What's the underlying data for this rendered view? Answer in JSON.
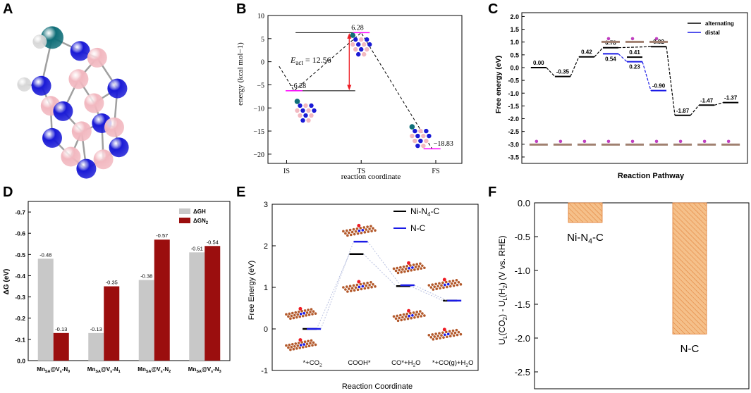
{
  "panel_letters": {
    "A": "A",
    "B": "B",
    "C": "C",
    "D": "D",
    "E": "E",
    "F": "F"
  },
  "colors": {
    "ni": "#1a1ad6",
    "b": "#f2b8c0",
    "mn": "#0f6e78",
    "h": "#d8d8d8",
    "pink": "#ff00ff",
    "red": "#ee1c24",
    "grey": "#c8c8c8",
    "darkred": "#9b0e0e",
    "orange": "#f5c08a",
    "orange_edge": "#e07a30",
    "blue": "#1a1ae6",
    "slab": "#b3592b"
  },
  "chart_data": [
    {
      "panel": "A",
      "type": "other",
      "title": "molecular structure (ball-and-stick)",
      "atoms": [
        {
          "el": "Mn",
          "x": 3.0,
          "y": 2.6
        },
        {
          "el": "H",
          "x": 2.2,
          "y": 2.9
        },
        {
          "el": "H",
          "x": 1.2,
          "y": 6.1
        },
        {
          "el": "N",
          "x": 2.3,
          "y": 6.2
        },
        {
          "el": "N",
          "x": 4.8,
          "y": 3.6
        },
        {
          "el": "B",
          "x": 5.9,
          "y": 4.1
        },
        {
          "el": "N",
          "x": 7.2,
          "y": 6.4
        },
        {
          "el": "B",
          "x": 4.7,
          "y": 5.7
        },
        {
          "el": "B",
          "x": 2.9,
          "y": 7.7
        },
        {
          "el": "N",
          "x": 3.7,
          "y": 8.1
        },
        {
          "el": "B",
          "x": 5.7,
          "y": 7.5
        },
        {
          "el": "N",
          "x": 6.2,
          "y": 9.0
        },
        {
          "el": "B",
          "x": 4.9,
          "y": 9.6
        },
        {
          "el": "N",
          "x": 3.0,
          "y": 10.1
        },
        {
          "el": "B",
          "x": 7.0,
          "y": 9.3
        },
        {
          "el": "N",
          "x": 7.3,
          "y": 10.8
        },
        {
          "el": "B",
          "x": 4.2,
          "y": 11.5
        },
        {
          "el": "B",
          "x": 6.3,
          "y": 11.7
        },
        {
          "el": "N",
          "x": 5.2,
          "y": 12.4
        }
      ],
      "bonds": [
        [
          0,
          1
        ],
        [
          0,
          4
        ],
        [
          0,
          3
        ],
        [
          2,
          3
        ],
        [
          3,
          8
        ],
        [
          4,
          5
        ],
        [
          5,
          6
        ],
        [
          5,
          7
        ],
        [
          7,
          9
        ],
        [
          8,
          9
        ],
        [
          7,
          10
        ],
        [
          10,
          6
        ],
        [
          10,
          11
        ],
        [
          9,
          12
        ],
        [
          12,
          11
        ],
        [
          8,
          13
        ],
        [
          13,
          16
        ],
        [
          11,
          14
        ],
        [
          14,
          6
        ],
        [
          14,
          15
        ],
        [
          15,
          17
        ],
        [
          16,
          18
        ],
        [
          17,
          18
        ],
        [
          12,
          18
        ],
        [
          12,
          16
        ],
        [
          11,
          17
        ]
      ]
    },
    {
      "panel": "B",
      "type": "line",
      "title": "",
      "xlabel": "reaction coordinate",
      "ylabel": "energy (kcal mol−1)",
      "categories": [
        "IS",
        "TS",
        "FS"
      ],
      "xpos": [
        0,
        1,
        2
      ],
      "levels": [
        {
          "x": 0.1,
          "y": -6.28,
          "label": "−6.28"
        },
        {
          "x": 1.0,
          "y": 6.28,
          "label": "6.28"
        },
        {
          "x": 1.95,
          "y": -18.83,
          "label": "−18.83"
        }
      ],
      "path_x": [
        -0.1,
        0.1,
        1.0,
        1.95
      ],
      "path_y": [
        -1.0,
        -6.28,
        6.28,
        -18.83
      ],
      "annotation": {
        "E": "E",
        "sub": "act",
        "eq": " = 12.56"
      },
      "yticks": [
        10,
        5,
        0,
        -5,
        -10,
        -15,
        -20
      ],
      "ytick_labels": [
        "10",
        "5",
        "0",
        "−5",
        "−10",
        "−15",
        "−20"
      ],
      "ylim": [
        -22,
        10
      ],
      "xlim": [
        -0.25,
        2.35
      ]
    },
    {
      "panel": "C",
      "type": "line",
      "title": "",
      "xlabel": "Reaction Pathway",
      "ylabel": "Free energy (eV)",
      "legend": [
        "alternating",
        "distal"
      ],
      "series": [
        {
          "name": "alternating",
          "x": [
            0,
            1,
            2,
            3,
            5,
            6,
            7,
            8
          ],
          "y": [
            0.0,
            -0.35,
            0.42,
            0.78,
            0.82,
            -1.87,
            -1.47,
            -1.37
          ]
        },
        {
          "name": "distal",
          "x": [
            3,
            4,
            5
          ],
          "y": [
            0.54,
            0.23,
            -0.9
          ]
        }
      ],
      "extra_levels": [
        {
          "x": 4,
          "y": 0.41
        }
      ],
      "value_labels": [
        {
          "x": 0,
          "y": 0.0,
          "t": "0.00"
        },
        {
          "x": 1,
          "y": -0.35,
          "t": "-0.35"
        },
        {
          "x": 2,
          "y": 0.42,
          "t": "0.42"
        },
        {
          "x": 3,
          "y": 0.78,
          "t": "0.78"
        },
        {
          "x": 3,
          "y": 0.54,
          "t": "0.54"
        },
        {
          "x": 4,
          "y": 0.41,
          "t": "0.41"
        },
        {
          "x": 4,
          "y": 0.23,
          "t": "0.23"
        },
        {
          "x": 5,
          "y": 0.82,
          "t": "0.82"
        },
        {
          "x": 5,
          "y": -0.9,
          "t": "-0.90"
        },
        {
          "x": 6,
          "y": -1.87,
          "t": "-1.87"
        },
        {
          "x": 7,
          "y": -1.47,
          "t": "-1.47"
        },
        {
          "x": 8,
          "y": -1.37,
          "t": "-1.37"
        }
      ],
      "yticks": [
        2.0,
        1.5,
        1.0,
        0.5,
        0.0,
        -0.5,
        -1.0,
        -1.5,
        -2.0,
        -2.5,
        -3.0,
        -3.5
      ],
      "ytick_labels": [
        "2.0",
        "1.5",
        "1.0",
        "0.5",
        "0.0",
        "-0.5",
        "-1.0",
        "-1.5",
        "-2.0",
        "-2.5",
        "-3.0",
        "-3.5"
      ],
      "ylim": [
        -3.75,
        2.15
      ],
      "xlim": [
        -0.7,
        8.7
      ]
    },
    {
      "panel": "D",
      "type": "bar",
      "title": "",
      "xlabel": "",
      "ylabel": "ΔG (eV)",
      "categories": [
        {
          "pre": "Mn",
          "sub1": "SA",
          "mid": "@V",
          "sub2": "s",
          "post": "-N",
          "sub3": "0"
        },
        {
          "pre": "Mn",
          "sub1": "SA",
          "mid": "@V",
          "sub2": "s",
          "post": "-N",
          "sub3": "1"
        },
        {
          "pre": "Mn",
          "sub1": "SA",
          "mid": "@V",
          "sub2": "s",
          "post": "-N",
          "sub3": "2"
        },
        {
          "pre": "Mn",
          "sub1": "SA",
          "mid": "@V",
          "sub2": "s",
          "post": "-N",
          "sub3": "3"
        }
      ],
      "legend": [
        {
          "main": "ΔGH",
          "sub": ""
        },
        {
          "main": "ΔGN",
          "sub": "2"
        }
      ],
      "series": [
        {
          "name": "ΔGH",
          "values": [
            -0.48,
            -0.13,
            -0.38,
            -0.51
          ]
        },
        {
          "name": "ΔGN2",
          "values": [
            -0.13,
            -0.35,
            -0.57,
            -0.54
          ]
        }
      ],
      "value_labels": [
        [
          "-0.48",
          "-0.13"
        ],
        [
          "-0.13",
          "-0.35"
        ],
        [
          "-0.38",
          "-0.57"
        ],
        [
          "-0.51",
          "-0.54"
        ]
      ],
      "yticks": [
        -0.7,
        -0.6,
        -0.5,
        -0.4,
        -0.3,
        -0.2,
        -0.1,
        0.0
      ],
      "ytick_labels": [
        "-0.7",
        "-0.6",
        "-0.5",
        "-0.4",
        "-0.3",
        "-0.2",
        "-0.1",
        "0.0"
      ],
      "ylim_reversed": [
        0.0,
        -0.75
      ]
    },
    {
      "panel": "E",
      "type": "line",
      "title": "",
      "xlabel": "Reaction Coordinate",
      "ylabel": "Free Energy (eV)",
      "legend": [
        {
          "main": "Ni-N",
          "sub": "4",
          "post": "-C"
        },
        {
          "main": "N-C",
          "sub": "",
          "post": ""
        }
      ],
      "categories": [
        {
          "main": "*+CO",
          "sub": "2",
          "post": ""
        },
        {
          "main": "COOH*",
          "sub": "",
          "post": ""
        },
        {
          "main": "CO*+H",
          "sub": "2",
          "post": "O"
        },
        {
          "main": "*+CO(g)+H",
          "sub": "2",
          "post": "O"
        }
      ],
      "series": [
        {
          "name": "Ni-N4-C",
          "x": [
            0,
            1,
            2,
            3
          ],
          "y": [
            0.0,
            1.8,
            1.03,
            0.68
          ]
        },
        {
          "name": "N-C",
          "x": [
            0,
            1,
            2,
            3
          ],
          "y": [
            0.0,
            2.1,
            1.05,
            0.68
          ]
        }
      ],
      "yticks": [
        3,
        2,
        1,
        0,
        -1
      ],
      "ytick_labels": [
        "3",
        "2",
        "1",
        "0",
        "-1"
      ],
      "ylim": [
        -1,
        3
      ],
      "xlim": [
        -0.8,
        3.6
      ]
    },
    {
      "panel": "F",
      "type": "bar",
      "title": "",
      "xlabel": "",
      "ylabel": {
        "a": "U",
        "as": "L",
        "b": "(CO",
        "bs": "2",
        "c": ") - U",
        "cs": "L",
        "d": "(H",
        "ds": "2",
        "e": ") (V vs. RHE)"
      },
      "categories": [
        {
          "main": "Ni-N",
          "sub": "4",
          "post": "-C"
        },
        {
          "main": "N-C",
          "sub": "",
          "post": ""
        }
      ],
      "values": [
        -0.29,
        -1.94
      ],
      "yticks": [
        0.0,
        -0.5,
        -1.0,
        -1.5,
        -2.0,
        -2.5
      ],
      "ytick_labels": [
        "0.0",
        "-0.5",
        "-1.0",
        "-1.5",
        "-2.0",
        "-2.5"
      ],
      "ylim": [
        -2.75,
        0.0
      ]
    }
  ]
}
